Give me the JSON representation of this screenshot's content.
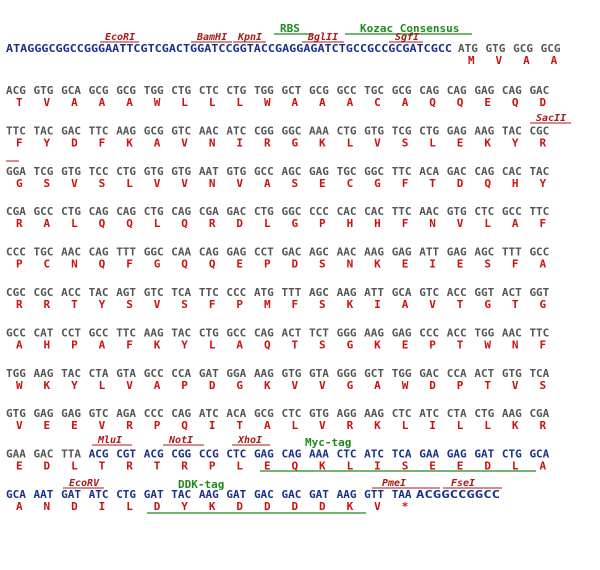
{
  "colors": {
    "dna_plain": "#555555",
    "dna_orf": "#1a2f8c",
    "aa": "#cc1111",
    "site": "#aa1a1a",
    "tag": "#1f8a1f"
  },
  "row0_left": "ATAGGGCGGCCGGGAATTCGTCGACTGGATCCGGTACCGAGGAGATCTGCCGCCGCGATCGCC",
  "row0_codons": [
    "ATG",
    "GTG",
    "GCG",
    "GCG"
  ],
  "row0_aa": [
    "M",
    "V",
    "A",
    "A"
  ],
  "rows": [
    {
      "codons": [
        "ACG",
        "GTG",
        "GCA",
        "GCG",
        "GCG",
        "TGG",
        "CTG",
        "CTC",
        "CTG",
        "TGG",
        "GCT",
        "GCG",
        "GCC",
        "TGC",
        "GCG",
        "CAG",
        "CAG",
        "GAG",
        "CAG",
        "GAC"
      ],
      "aa": [
        "T",
        "V",
        "A",
        "A",
        "A",
        "W",
        "L",
        "L",
        "L",
        "W",
        "A",
        "A",
        "A",
        "C",
        "A",
        "Q",
        "Q",
        "E",
        "Q",
        "D"
      ]
    },
    {
      "codons": [
        "TTC",
        "TAC",
        "GAC",
        "TTC",
        "AAG",
        "GCG",
        "GTC",
        "AAC",
        "ATC",
        "CGG",
        "GGC",
        "AAA",
        "CTG",
        "GTG",
        "TCG",
        "CTG",
        "GAG",
        "AAG",
        "TAC",
        "CGC"
      ],
      "aa": [
        "F",
        "Y",
        "D",
        "F",
        "K",
        "A",
        "V",
        "N",
        "I",
        "R",
        "G",
        "K",
        "L",
        "V",
        "S",
        "L",
        "E",
        "K",
        "Y",
        "R"
      ]
    },
    {
      "codons": [
        "GGA",
        "TCG",
        "GTG",
        "TCC",
        "CTG",
        "GTG",
        "GTG",
        "AAT",
        "GTG",
        "GCC",
        "AGC",
        "GAG",
        "TGC",
        "GGC",
        "TTC",
        "ACA",
        "GAC",
        "CAG",
        "CAC",
        "TAC"
      ],
      "aa": [
        "G",
        "S",
        "V",
        "S",
        "L",
        "V",
        "V",
        "N",
        "V",
        "A",
        "S",
        "E",
        "C",
        "G",
        "F",
        "T",
        "D",
        "Q",
        "H",
        "Y"
      ]
    },
    {
      "codons": [
        "CGA",
        "GCC",
        "CTG",
        "CAG",
        "CAG",
        "CTG",
        "CAG",
        "CGA",
        "GAC",
        "CTG",
        "GGC",
        "CCC",
        "CAC",
        "CAC",
        "TTC",
        "AAC",
        "GTG",
        "CTC",
        "GCC",
        "TTC"
      ],
      "aa": [
        "R",
        "A",
        "L",
        "Q",
        "Q",
        "L",
        "Q",
        "R",
        "D",
        "L",
        "G",
        "P",
        "H",
        "H",
        "F",
        "N",
        "V",
        "L",
        "A",
        "F"
      ]
    },
    {
      "codons": [
        "CCC",
        "TGC",
        "AAC",
        "CAG",
        "TTT",
        "GGC",
        "CAA",
        "CAG",
        "GAG",
        "CCT",
        "GAC",
        "AGC",
        "AAC",
        "AAG",
        "GAG",
        "ATT",
        "GAG",
        "AGC",
        "TTT",
        "GCC"
      ],
      "aa": [
        "P",
        "C",
        "N",
        "Q",
        "F",
        "G",
        "Q",
        "Q",
        "E",
        "P",
        "D",
        "S",
        "N",
        "K",
        "E",
        "I",
        "E",
        "S",
        "F",
        "A"
      ]
    },
    {
      "codons": [
        "CGC",
        "CGC",
        "ACC",
        "TAC",
        "AGT",
        "GTC",
        "TCA",
        "TTC",
        "CCC",
        "ATG",
        "TTT",
        "AGC",
        "AAG",
        "ATT",
        "GCA",
        "GTC",
        "ACC",
        "GGT",
        "ACT",
        "GGT"
      ],
      "aa": [
        "R",
        "R",
        "T",
        "Y",
        "S",
        "V",
        "S",
        "F",
        "P",
        "M",
        "F",
        "S",
        "K",
        "I",
        "A",
        "V",
        "T",
        "G",
        "T",
        "G"
      ]
    },
    {
      "codons": [
        "GCC",
        "CAT",
        "CCT",
        "GCC",
        "TTC",
        "AAG",
        "TAC",
        "CTG",
        "GCC",
        "CAG",
        "ACT",
        "TCT",
        "GGG",
        "AAG",
        "GAG",
        "CCC",
        "ACC",
        "TGG",
        "AAC",
        "TTC"
      ],
      "aa": [
        "A",
        "H",
        "P",
        "A",
        "F",
        "K",
        "Y",
        "L",
        "A",
        "Q",
        "T",
        "S",
        "G",
        "K",
        "E",
        "P",
        "T",
        "W",
        "N",
        "F"
      ]
    },
    {
      "codons": [
        "TGG",
        "AAG",
        "TAC",
        "CTA",
        "GTA",
        "GCC",
        "CCA",
        "GAT",
        "GGA",
        "AAG",
        "GTG",
        "GTA",
        "GGG",
        "GCT",
        "TGG",
        "GAC",
        "CCA",
        "ACT",
        "GTG",
        "TCA"
      ],
      "aa": [
        "W",
        "K",
        "Y",
        "L",
        "V",
        "A",
        "P",
        "D",
        "G",
        "K",
        "V",
        "V",
        "G",
        "A",
        "W",
        "D",
        "P",
        "T",
        "V",
        "S"
      ]
    },
    {
      "codons": [
        "GTG",
        "GAG",
        "GAG",
        "GTC",
        "AGA",
        "CCC",
        "CAG",
        "ATC",
        "ACA",
        "GCG",
        "CTC",
        "GTG",
        "AGG",
        "AAG",
        "CTC",
        "ATC",
        "CTA",
        "CTG",
        "AAG",
        "CGA"
      ],
      "aa": [
        "V",
        "E",
        "E",
        "V",
        "R",
        "P",
        "Q",
        "I",
        "T",
        "A",
        "L",
        "V",
        "R",
        "K",
        "L",
        "I",
        "L",
        "L",
        "K",
        "R"
      ]
    },
    {
      "codons": [
        "GAA",
        "GAC",
        "TTA",
        "ACG",
        "CGT",
        "ACG",
        "CGG",
        "CCG",
        "CTC",
        "GAG",
        "CAG",
        "AAA",
        "CTC",
        "ATC",
        "TCA",
        "GAA",
        "GAG",
        "GAT",
        "CTG",
        "GCA"
      ],
      "aa": [
        "E",
        "D",
        "L",
        "T",
        "R",
        "T",
        "R",
        "P",
        "L",
        "E",
        "Q",
        "K",
        "L",
        "I",
        "S",
        "E",
        "E",
        "D",
        "L",
        "A"
      ]
    },
    {
      "codons": [
        "GCA",
        "AAT",
        "GAT",
        "ATC",
        "CTG",
        "GAT",
        "TAC",
        "AAG",
        "GAT",
        "GAC",
        "GAC",
        "GAT",
        "AAG",
        "GTT",
        "TAA"
      ],
      "aa": [
        "A",
        "N",
        "D",
        "I",
        "L",
        "D",
        "Y",
        "K",
        "D",
        "D",
        "D",
        "D",
        "K",
        "V",
        "*"
      ]
    }
  ],
  "row11_tail": "ACGGCCGGCC",
  "sites_row0": {
    "ecori": "EcoRI",
    "bamhi": "BamHI",
    "kpni": "KpnI",
    "bglii": "BglII",
    "sgfi": "SgfI"
  },
  "features_row0": {
    "rbs": "RBS",
    "kozac": "Kozac Consensus"
  },
  "sacii": "SacII",
  "sites_row10": {
    "mlui": "MluI",
    "noti": "NotI",
    "xhoi": "XhoI"
  },
  "myc_tag": "Myc-tag",
  "sites_row11": {
    "ecorv": "EcoRV",
    "pmei": "PmeI",
    "fsei": "FseI"
  },
  "ddk_tag": "DDK-tag"
}
